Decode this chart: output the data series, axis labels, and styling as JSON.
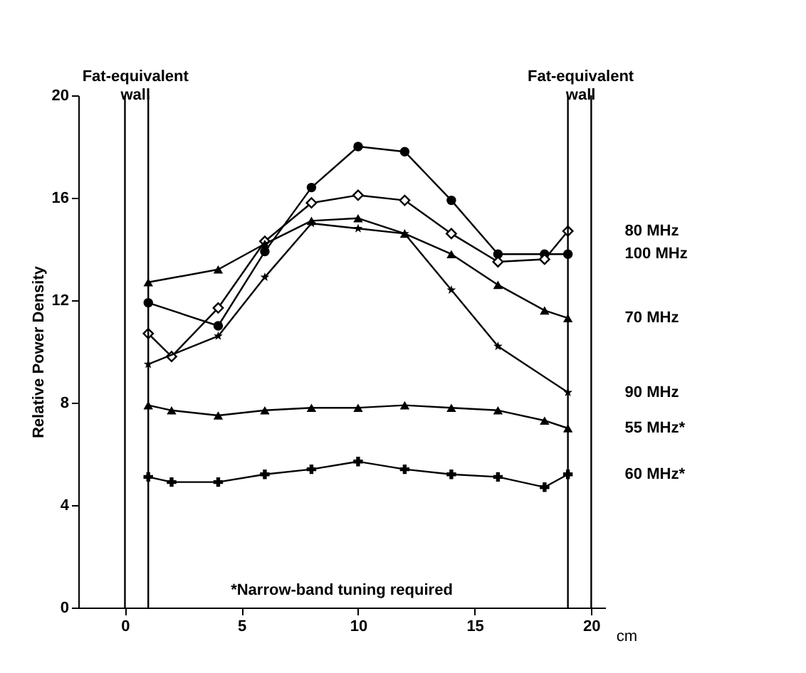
{
  "chart_data": {
    "type": "line",
    "xlabel": "cm",
    "ylabel": "Relative Power Density",
    "xlim": [
      -2,
      20.6
    ],
    "ylim": [
      0,
      20
    ],
    "xticks": [
      0,
      5,
      10,
      15,
      20
    ],
    "yticks": [
      0,
      4,
      8,
      12,
      16,
      20
    ],
    "grid": false,
    "legend": false,
    "x": [
      1,
      2,
      4,
      6,
      8,
      10,
      12,
      14,
      16,
      18,
      19
    ],
    "series": [
      {
        "name": "100 MHz",
        "color": "#000000",
        "marker": "circle",
        "values": [
          11.9,
          null,
          11.0,
          13.9,
          16.4,
          18.0,
          17.8,
          15.9,
          13.8,
          13.8,
          13.8
        ]
      },
      {
        "name": "80 MHz",
        "color": "#000000",
        "marker": "diamond",
        "values": [
          10.7,
          9.8,
          11.7,
          14.3,
          15.8,
          16.1,
          15.9,
          14.6,
          13.5,
          13.6,
          14.7
        ]
      },
      {
        "name": "70 MHz",
        "color": "#000000",
        "marker": "triangle",
        "values": [
          12.7,
          null,
          13.2,
          14.2,
          15.1,
          15.2,
          14.6,
          13.8,
          12.6,
          11.6,
          11.3
        ]
      },
      {
        "name": "90 MHz",
        "color": "#000000",
        "marker": "star",
        "values": [
          9.5,
          null,
          10.6,
          12.9,
          15.0,
          14.8,
          14.6,
          12.4,
          10.2,
          null,
          8.4
        ]
      },
      {
        "name": "55 MHz*",
        "color": "#000000",
        "marker": "triangle",
        "values": [
          7.9,
          7.7,
          7.5,
          7.7,
          7.8,
          7.8,
          7.9,
          7.8,
          7.7,
          7.3,
          7.0
        ]
      },
      {
        "name": "60 MHz*",
        "color": "#000000",
        "marker": "cross",
        "values": [
          5.1,
          4.9,
          4.9,
          5.2,
          5.4,
          5.7,
          5.4,
          5.2,
          5.1,
          4.7,
          5.2
        ]
      }
    ],
    "ref_lines": [
      {
        "axis": "x",
        "value": 0
      },
      {
        "axis": "x",
        "value": 1,
        "label": "Fat-equivalent wall"
      },
      {
        "axis": "x",
        "value": 19,
        "label": "Fat-equivalent wall"
      },
      {
        "axis": "x",
        "value": 20
      }
    ],
    "annotations": [
      "*Narrow-band tuning required"
    ]
  }
}
